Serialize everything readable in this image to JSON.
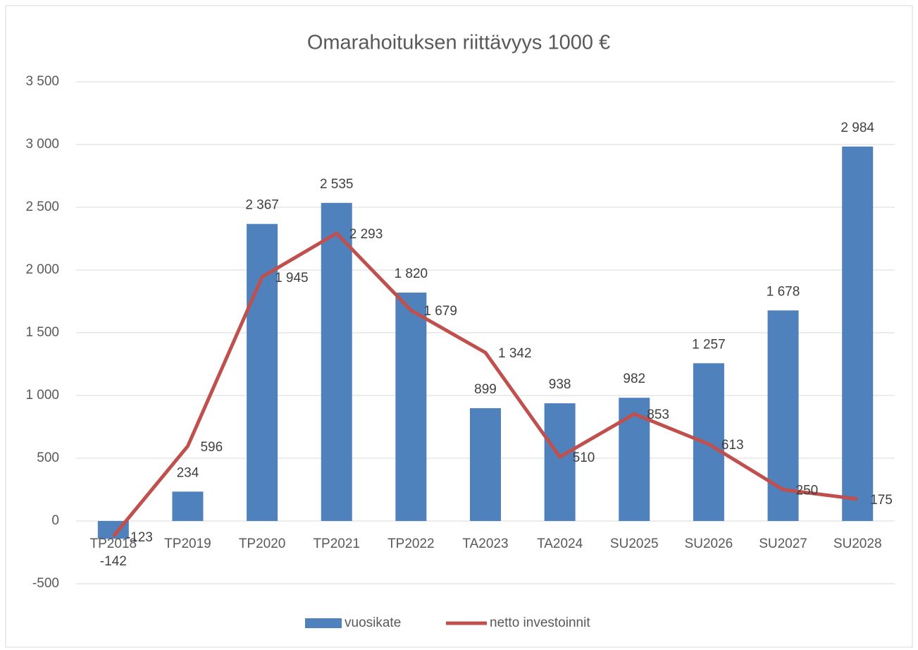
{
  "chart_data": {
    "type": "bar",
    "title": "Omarahoituksen riittävyys 1000 €",
    "categories": [
      "TP2018",
      "TP2019",
      "TP2020",
      "TP2021",
      "TP2022",
      "TA2023",
      "TA2024",
      "SU2025",
      "SU2026",
      "SU2027",
      "SU2028"
    ],
    "series": [
      {
        "name": "vuosikate",
        "type": "bar",
        "color": "#4f81bd",
        "values": [
          -142,
          234,
          2367,
          2535,
          1820,
          899,
          938,
          982,
          1257,
          1678,
          2984
        ],
        "value_labels": [
          "-142",
          "234",
          "2 367",
          "2 535",
          "1 820",
          "899",
          "938",
          "982",
          "1 257",
          "1 678",
          "2 984"
        ]
      },
      {
        "name": "netto investoinnit",
        "type": "line",
        "color": "#c0504d",
        "values": [
          -123,
          596,
          1945,
          2293,
          1679,
          1342,
          510,
          853,
          613,
          250,
          175
        ],
        "value_labels": [
          "-123",
          "596",
          "1 945",
          "2 293",
          "1 679",
          "1 342",
          "510",
          "853",
          "613",
          "250",
          "175"
        ]
      }
    ],
    "ylim": [
      -500,
      3500
    ],
    "yticks": [
      -500,
      0,
      500,
      {
        "value": 1000,
        "label": "1 000"
      },
      {
        "value": 1500,
        "label": "1 500"
      },
      {
        "value": 2000,
        "label": "2 000"
      },
      {
        "value": 2500,
        "label": "2 500"
      },
      {
        "value": 3000,
        "label": "3 000"
      },
      {
        "value": 3500,
        "label": "3 500"
      }
    ],
    "grid": true,
    "legend": "bottom"
  }
}
